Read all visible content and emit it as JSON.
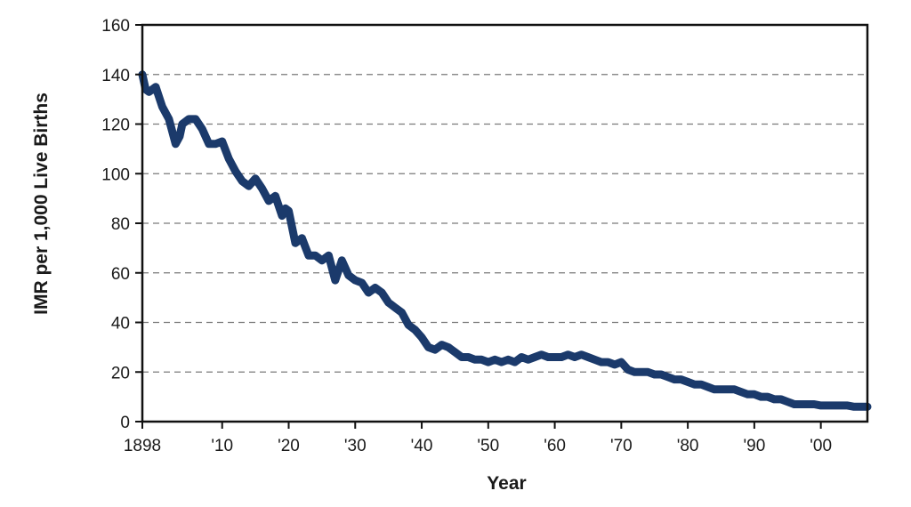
{
  "chart_data": {
    "type": "line",
    "title": "",
    "xlabel": "Year",
    "ylabel": "IMR per 1,000 Live Births",
    "xlim": [
      1898,
      2007
    ],
    "ylim": [
      0,
      160
    ],
    "grid": true,
    "line_color": "#1b3a6b",
    "x_tick_values": [
      1898,
      1910,
      1920,
      1930,
      1940,
      1950,
      1960,
      1970,
      1980,
      1990,
      2000
    ],
    "x_tick_labels": [
      "1898",
      "'10",
      "'20",
      "'30",
      "'40",
      "'50",
      "'60",
      "'70",
      "'80",
      "'90",
      "'00"
    ],
    "y_tick_values": [
      0,
      20,
      40,
      60,
      80,
      100,
      120,
      140,
      160
    ],
    "y_tick_labels": [
      "0",
      "20",
      "40",
      "60",
      "80",
      "100",
      "120",
      "140",
      "160"
    ],
    "series": [
      {
        "name": "",
        "x": [
          1898,
          1898.5,
          1899,
          1900,
          1901,
          1902,
          1903,
          1903.6,
          1904,
          1905,
          1906,
          1907,
          1908,
          1909,
          1910,
          1911,
          1912,
          1913,
          1914,
          1915,
          1916,
          1917,
          1918,
          1919,
          1919.5,
          1920,
          1921,
          1922,
          1923,
          1924,
          1925,
          1926,
          1926.5,
          1927,
          1928,
          1929,
          1930,
          1931,
          1932,
          1933,
          1934,
          1935,
          1936,
          1937,
          1938,
          1939,
          1940,
          1941,
          1942,
          1943,
          1944,
          1945,
          1946,
          1947,
          1948,
          1949,
          1950,
          1951,
          1952,
          1953,
          1954,
          1955,
          1956,
          1957,
          1958,
          1959,
          1960,
          1961,
          1962,
          1963,
          1964,
          1965,
          1966,
          1967,
          1968,
          1969,
          1970,
          1971,
          1972,
          1973,
          1974,
          1975,
          1976,
          1977,
          1978,
          1979,
          1980,
          1981,
          1982,
          1983,
          1984,
          1985,
          1986,
          1987,
          1988,
          1989,
          1990,
          1991,
          1992,
          1993,
          1994,
          1995,
          1996,
          1997,
          1998,
          1999,
          2000,
          2001,
          2002,
          2003,
          2004,
          2005,
          2006,
          2007
        ],
        "y": [
          140,
          134,
          133,
          135,
          127,
          122,
          112,
          115,
          120,
          122,
          122,
          118,
          112,
          112,
          113,
          106,
          101,
          97,
          95,
          98,
          94,
          89,
          91,
          83,
          86,
          85,
          72,
          74,
          67,
          67,
          65,
          67,
          62,
          57,
          65,
          59,
          57,
          56,
          52,
          54,
          52,
          48,
          46,
          44,
          39,
          37,
          34,
          30,
          29,
          31,
          30,
          28,
          26,
          26,
          25,
          25,
          24,
          25,
          24,
          25,
          24,
          26,
          25,
          26,
          27,
          26,
          26,
          26,
          27,
          26,
          27,
          26,
          25,
          24,
          24,
          23,
          24,
          21,
          20,
          20,
          20,
          19,
          19,
          18,
          17,
          17,
          16,
          15,
          15,
          14,
          13,
          13,
          13,
          13,
          12,
          11,
          11,
          10,
          10,
          9,
          9,
          8,
          7,
          7,
          7,
          7,
          6.5,
          6.5,
          6.5,
          6.5,
          6.5,
          6,
          6,
          6
        ]
      }
    ]
  }
}
